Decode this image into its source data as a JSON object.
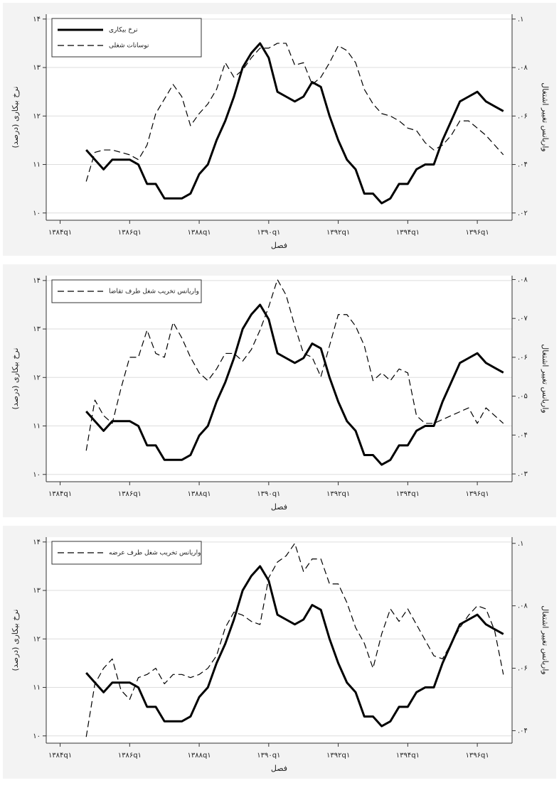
{
  "chart_data": [
    {
      "type": "line",
      "x_label": "فصل",
      "y_label": "نرخ بیکاری (درصد)",
      "y2_label": "واریانس تغییر اشتغال",
      "legend": "top-left",
      "grid": true,
      "x": [
        1384.75,
        1385,
        1385.25,
        1385.5,
        1385.75,
        1386,
        1386.25,
        1386.5,
        1386.75,
        1387,
        1387.25,
        1387.5,
        1387.75,
        1388,
        1388.25,
        1388.5,
        1388.75,
        1389,
        1389.25,
        1389.5,
        1389.75,
        1390,
        1390.25,
        1390.5,
        1390.75,
        1391,
        1391.25,
        1391.5,
        1391.75,
        1392,
        1392.25,
        1392.5,
        1392.75,
        1393,
        1393.25,
        1393.5,
        1393.75,
        1394,
        1394.25,
        1394.5,
        1394.75,
        1395,
        1395.25,
        1395.5,
        1395.75,
        1396,
        1396.25,
        1396.5,
        1396.75
      ],
      "xlim": [
        1383.6,
        1397.0
      ],
      "xticks": [
        {
          "value": 1384,
          "label": "۱۳۸۴q۱"
        },
        {
          "value": 1386,
          "label": "۱۳۸۶q۱"
        },
        {
          "value": 1388,
          "label": "۱۳۸۸q۱"
        },
        {
          "value": 1390,
          "label": "۱۳۹۰q۱"
        },
        {
          "value": 1392,
          "label": "۱۳۹۲q۱"
        },
        {
          "value": 1394,
          "label": "۱۳۹۴q۱"
        },
        {
          "value": 1396,
          "label": "۱۳۹۶q۱"
        }
      ],
      "ylim": [
        9.85,
        14.1
      ],
      "yticks": [
        {
          "value": 10,
          "label": "۱۰"
        },
        {
          "value": 11,
          "label": "۱۱"
        },
        {
          "value": 12,
          "label": "۱۲"
        },
        {
          "value": 13,
          "label": "۱۳"
        },
        {
          "value": 14,
          "label": "۱۴"
        }
      ],
      "y2lim": [
        0.017,
        0.102
      ],
      "y2ticks": [
        {
          "value": 0.02,
          "label": ".۰۲"
        },
        {
          "value": 0.04,
          "label": ".۰۴"
        },
        {
          "value": 0.06,
          "label": ".۰۶"
        },
        {
          "value": 0.08,
          "label": ".۰۸"
        },
        {
          "value": 0.1,
          "label": ".۱"
        }
      ],
      "series": [
        {
          "name": "نرخ بیکاری",
          "color": "#000000",
          "style": "solid",
          "values": [
            11.3,
            11.1,
            10.9,
            11.1,
            11.1,
            11.1,
            11.0,
            10.6,
            10.6,
            10.3,
            10.3,
            10.3,
            10.4,
            10.8,
            11.0,
            11.5,
            11.9,
            12.4,
            13.0,
            13.3,
            13.5,
            13.2,
            12.5,
            12.4,
            12.3,
            12.4,
            12.7,
            12.6,
            12.0,
            11.5,
            11.1,
            10.9,
            10.4,
            10.4,
            10.2,
            10.3,
            10.6,
            10.6,
            10.9,
            11.0,
            11.0,
            11.5,
            11.9,
            12.3,
            12.4,
            12.5,
            12.3,
            12.2,
            12.1
          ]
        },
        {
          "name": "نوسانات شغلی",
          "color": "#000000",
          "style": "dashed",
          "axis": "y2",
          "values": [
            0.033,
            0.045,
            0.046,
            0.046,
            0.045,
            0.044,
            0.042,
            0.048,
            0.061,
            0.067,
            0.073,
            0.068,
            0.056,
            0.061,
            0.065,
            0.071,
            0.082,
            0.076,
            0.079,
            0.084,
            0.088,
            0.088,
            0.09,
            0.09,
            0.081,
            0.082,
            0.073,
            0.076,
            0.082,
            0.089,
            0.087,
            0.082,
            0.071,
            0.065,
            0.061,
            0.06,
            0.058,
            0.055,
            0.054,
            0.049,
            0.046,
            0.048,
            0.052,
            0.058,
            0.058,
            0.055,
            0.052,
            0.048,
            0.044
          ]
        }
      ]
    },
    {
      "type": "line",
      "x_label": "فصل",
      "y_label": "نرخ بیکاری (درصد)",
      "y2_label": "واریانس تغییر اشتغال",
      "legend": "top-left",
      "grid": true,
      "x": [
        1384.75,
        1385,
        1385.25,
        1385.5,
        1385.75,
        1386,
        1386.25,
        1386.5,
        1386.75,
        1387,
        1387.25,
        1387.5,
        1387.75,
        1388,
        1388.25,
        1388.5,
        1388.75,
        1389,
        1389.25,
        1389.5,
        1389.75,
        1390,
        1390.25,
        1390.5,
        1390.75,
        1391,
        1391.25,
        1391.5,
        1391.75,
        1392,
        1392.25,
        1392.5,
        1392.75,
        1393,
        1393.25,
        1393.5,
        1393.75,
        1394,
        1394.25,
        1394.5,
        1394.75,
        1395,
        1395.25,
        1395.5,
        1395.75,
        1396,
        1396.25,
        1396.5,
        1396.75
      ],
      "xlim": [
        1383.6,
        1397.0
      ],
      "xticks": [
        {
          "value": 1384,
          "label": "۱۳۸۴q۱"
        },
        {
          "value": 1386,
          "label": "۱۳۸۶q۱"
        },
        {
          "value": 1388,
          "label": "۱۳۸۸q۱"
        },
        {
          "value": 1390,
          "label": "۱۳۹۰q۱"
        },
        {
          "value": 1392,
          "label": "۱۳۹۲q۱"
        },
        {
          "value": 1394,
          "label": "۱۳۹۴q۱"
        },
        {
          "value": 1396,
          "label": "۱۳۹۶q۱"
        }
      ],
      "ylim": [
        9.85,
        14.1
      ],
      "yticks": [
        {
          "value": 10,
          "label": "۱۰"
        },
        {
          "value": 11,
          "label": "۱۱"
        },
        {
          "value": 12,
          "label": "۱۲"
        },
        {
          "value": 13,
          "label": "۱۳"
        },
        {
          "value": 14,
          "label": "۱۴"
        }
      ],
      "y2lim": [
        0.028,
        0.081
      ],
      "y2ticks": [
        {
          "value": 0.03,
          "label": ".۰۳"
        },
        {
          "value": 0.04,
          "label": ".۰۴"
        },
        {
          "value": 0.05,
          "label": ".۰۵"
        },
        {
          "value": 0.06,
          "label": ".۰۶"
        },
        {
          "value": 0.07,
          "label": ".۰۷"
        },
        {
          "value": 0.08,
          "label": ".۰۸"
        }
      ],
      "series": [
        {
          "color": "#000000",
          "style": "solid",
          "values": [
            11.3,
            11.1,
            10.9,
            11.1,
            11.1,
            11.1,
            11.0,
            10.6,
            10.6,
            10.3,
            10.3,
            10.3,
            10.4,
            10.8,
            11.0,
            11.5,
            11.9,
            12.4,
            13.0,
            13.3,
            13.5,
            13.2,
            12.5,
            12.4,
            12.3,
            12.4,
            12.7,
            12.6,
            12.0,
            11.5,
            11.1,
            10.9,
            10.4,
            10.4,
            10.2,
            10.3,
            10.6,
            10.6,
            10.9,
            11.0,
            11.0,
            11.5,
            11.9,
            12.3,
            12.4,
            12.5,
            12.3,
            12.2,
            12.1
          ]
        },
        {
          "name": "واریانس تخریب شغل طرف تقاضا",
          "color": "#000000",
          "style": "dashed",
          "axis": "y2",
          "values": [
            0.036,
            0.049,
            0.045,
            0.043,
            0.052,
            0.06,
            0.06,
            0.067,
            0.061,
            0.06,
            0.069,
            0.065,
            0.06,
            0.056,
            0.054,
            0.057,
            0.061,
            0.061,
            0.059,
            0.062,
            0.067,
            0.073,
            0.08,
            0.076,
            0.068,
            0.061,
            0.06,
            0.055,
            0.063,
            0.071,
            0.071,
            0.068,
            0.063,
            0.054,
            0.056,
            0.054,
            0.057,
            0.056,
            0.045,
            0.043,
            0.043,
            0.044,
            0.045,
            0.046,
            0.047,
            0.043,
            0.047,
            0.045,
            0.043
          ]
        }
      ]
    },
    {
      "type": "line",
      "x_label": "فصل",
      "y_label": "نرخ بیکاری (درصد)",
      "y2_label": "واریانس تغییر اشتغال",
      "legend": "top-left",
      "grid": true,
      "x": [
        1384.75,
        1385,
        1385.25,
        1385.5,
        1385.75,
        1386,
        1386.25,
        1386.5,
        1386.75,
        1387,
        1387.25,
        1387.5,
        1387.75,
        1388,
        1388.25,
        1388.5,
        1388.75,
        1389,
        1389.25,
        1389.5,
        1389.75,
        1390,
        1390.25,
        1390.5,
        1390.75,
        1391,
        1391.25,
        1391.5,
        1391.75,
        1392,
        1392.25,
        1392.5,
        1392.75,
        1393,
        1393.25,
        1393.5,
        1393.75,
        1394,
        1394.25,
        1394.5,
        1394.75,
        1395,
        1395.25,
        1395.5,
        1395.75,
        1396,
        1396.25,
        1396.5,
        1396.75
      ],
      "xlim": [
        1383.6,
        1397.0
      ],
      "xticks": [
        {
          "value": 1384,
          "label": "۱۳۸۴q۱"
        },
        {
          "value": 1386,
          "label": "۱۳۸۶q۱"
        },
        {
          "value": 1388,
          "label": "۱۳۸۸q۱"
        },
        {
          "value": 1390,
          "label": "۱۳۹۰q۱"
        },
        {
          "value": 1392,
          "label": "۱۳۹۲q۱"
        },
        {
          "value": 1394,
          "label": "۱۳۹۴q۱"
        },
        {
          "value": 1396,
          "label": "۱۳۹۶q۱"
        }
      ],
      "ylim": [
        9.85,
        14.1
      ],
      "yticks": [
        {
          "value": 10,
          "label": "۱۰"
        },
        {
          "value": 11,
          "label": "۱۱"
        },
        {
          "value": 12,
          "label": "۱۲"
        },
        {
          "value": 13,
          "label": "۱۳"
        },
        {
          "value": 14,
          "label": "۱۴"
        }
      ],
      "y2lim": [
        0.036,
        0.102
      ],
      "y2ticks": [
        {
          "value": 0.04,
          "label": ".۰۴"
        },
        {
          "value": 0.06,
          "label": ".۰۶"
        },
        {
          "value": 0.08,
          "label": ".۰۸"
        },
        {
          "value": 0.1,
          "label": ".۱"
        }
      ],
      "series": [
        {
          "color": "#000000",
          "style": "solid",
          "values": [
            11.3,
            11.1,
            10.9,
            11.1,
            11.1,
            11.1,
            11.0,
            10.6,
            10.6,
            10.3,
            10.3,
            10.3,
            10.4,
            10.8,
            11.0,
            11.5,
            11.9,
            12.4,
            13.0,
            13.3,
            13.5,
            13.2,
            12.5,
            12.4,
            12.3,
            12.4,
            12.7,
            12.6,
            12.0,
            11.5,
            11.1,
            10.9,
            10.4,
            10.4,
            10.2,
            10.3,
            10.6,
            10.6,
            10.9,
            11.0,
            11.0,
            11.5,
            11.9,
            12.3,
            12.4,
            12.5,
            12.3,
            12.2,
            12.1
          ]
        },
        {
          "name": "واریانس تخریب شغل طرف عرضه",
          "color": "#000000",
          "style": "dashed",
          "axis": "y2",
          "values": [
            0.038,
            0.055,
            0.06,
            0.063,
            0.053,
            0.05,
            0.057,
            0.058,
            0.06,
            0.055,
            0.058,
            0.058,
            0.057,
            0.058,
            0.06,
            0.064,
            0.073,
            0.078,
            0.077,
            0.075,
            0.074,
            0.089,
            0.094,
            0.096,
            0.1,
            0.091,
            0.095,
            0.095,
            0.087,
            0.087,
            0.081,
            0.073,
            0.068,
            0.06,
            0.071,
            0.079,
            0.075,
            0.079,
            0.074,
            0.069,
            0.064,
            0.063,
            0.068,
            0.073,
            0.077,
            0.08,
            0.079,
            0.072,
            0.058
          ]
        }
      ]
    }
  ]
}
